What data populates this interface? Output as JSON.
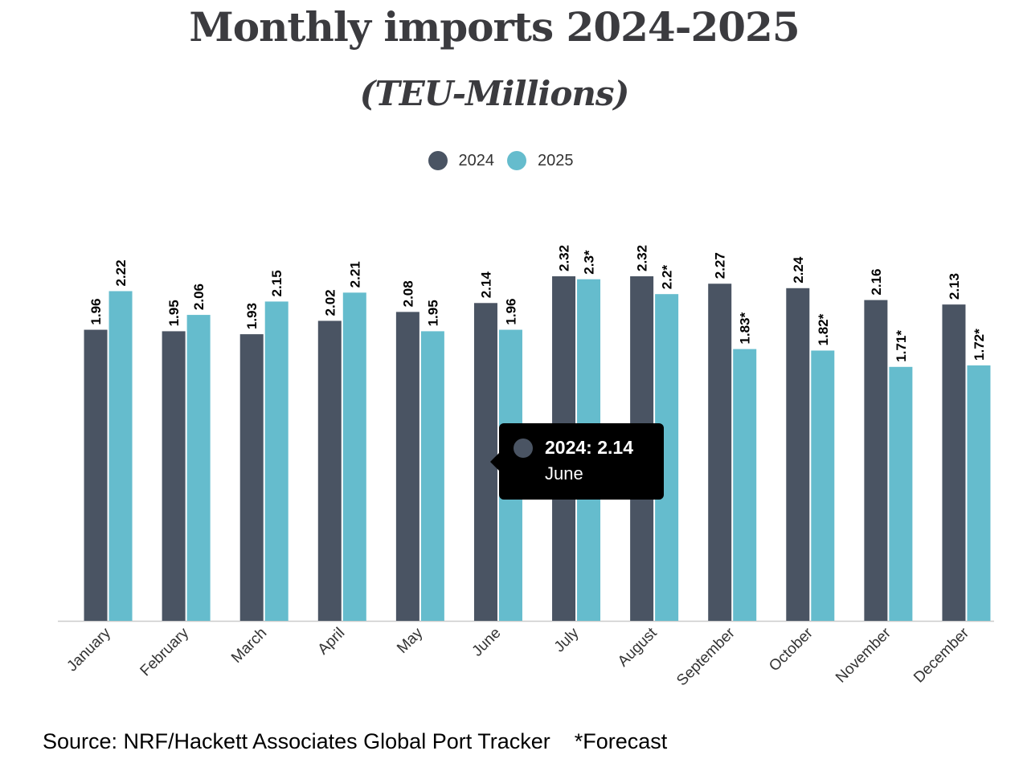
{
  "chart_data": {
    "type": "bar",
    "title": "Monthly imports 2024-2025",
    "subtitle": "(TEU-Millions)",
    "categories": [
      "January",
      "February",
      "March",
      "April",
      "May",
      "June",
      "July",
      "August",
      "September",
      "October",
      "November",
      "December"
    ],
    "series": [
      {
        "name": "2024",
        "color": "#4a5463",
        "values": [
          1.96,
          1.95,
          1.93,
          2.02,
          2.08,
          2.14,
          2.32,
          2.32,
          2.27,
          2.24,
          2.16,
          2.13
        ],
        "labels": [
          "1.96",
          "1.95",
          "1.93",
          "2.02",
          "2.08",
          "2.14",
          "2.32",
          "2.32",
          "2.27",
          "2.24",
          "2.16",
          "2.13"
        ]
      },
      {
        "name": "2025",
        "color": "#65bccd",
        "values": [
          2.22,
          2.06,
          2.15,
          2.21,
          1.95,
          1.96,
          2.3,
          2.2,
          1.83,
          1.82,
          1.71,
          1.72
        ],
        "labels": [
          "2.22",
          "2.06",
          "2.15",
          "2.21",
          "1.95",
          "1.96",
          "2.3*",
          "2.2*",
          "1.83*",
          "1.82*",
          "1.71*",
          "1.72*"
        ]
      }
    ],
    "ylim": [
      0,
      2.35
    ],
    "legend": "top-center",
    "grid": false
  },
  "tooltip": {
    "value_text": "2024: 2.14",
    "category": "June",
    "color": "#4a5463"
  },
  "footer": {
    "source": "Source: NRF/Hackett Associates Global Port Tracker",
    "note": "*Forecast"
  }
}
